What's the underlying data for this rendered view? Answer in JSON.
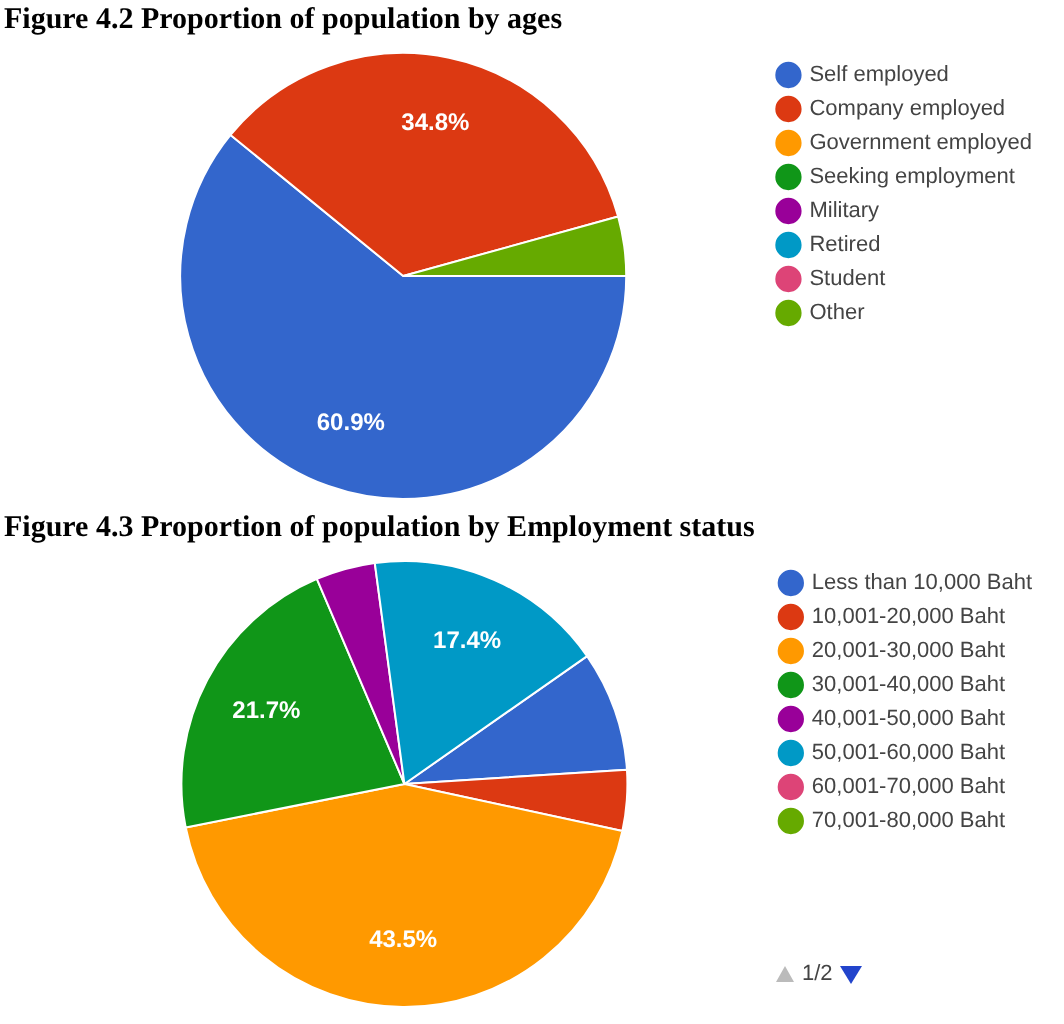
{
  "chart_data": [
    {
      "type": "pie",
      "title": "Figure 4.2  Proportion of population by ages",
      "categories": [
        "Self employed",
        "Company employed",
        "Government employed",
        "Seeking employment",
        "Military",
        "Retired",
        "Student",
        "Other"
      ],
      "values": [
        60.9,
        34.8,
        0,
        0,
        0,
        0,
        0,
        4.3
      ],
      "value_labels": [
        "60.9%",
        "34.8%",
        null,
        null,
        null,
        null,
        null,
        null
      ],
      "colors": [
        "#3366cc",
        "#dc3912",
        "#ff9900",
        "#109618",
        "#990099",
        "#0099c6",
        "#dd4477",
        "#66aa00"
      ],
      "legend": "right"
    },
    {
      "type": "pie",
      "title": "Figure 4.3   Proportion of population by Employment status",
      "categories": [
        "Less than 10,000 Baht",
        "10,001-20,000 Baht",
        "20,001-30,000 Baht",
        "30,001-40,000 Baht",
        "40,001-50,000 Baht",
        "50,001-60,000 Baht",
        "60,001-70,000 Baht",
        "70,001-80,000 Baht"
      ],
      "values": [
        8.7,
        4.4,
        43.5,
        21.7,
        4.3,
        17.4,
        0,
        0
      ],
      "value_labels": [
        null,
        null,
        "43.5%",
        "21.7%",
        null,
        "17.4%",
        null,
        null
      ],
      "colors": [
        "#3366cc",
        "#dc3912",
        "#ff9900",
        "#109618",
        "#990099",
        "#0099c6",
        "#dd4477",
        "#66aa00"
      ],
      "legend": "right",
      "annotations": [
        "1/2"
      ]
    }
  ]
}
